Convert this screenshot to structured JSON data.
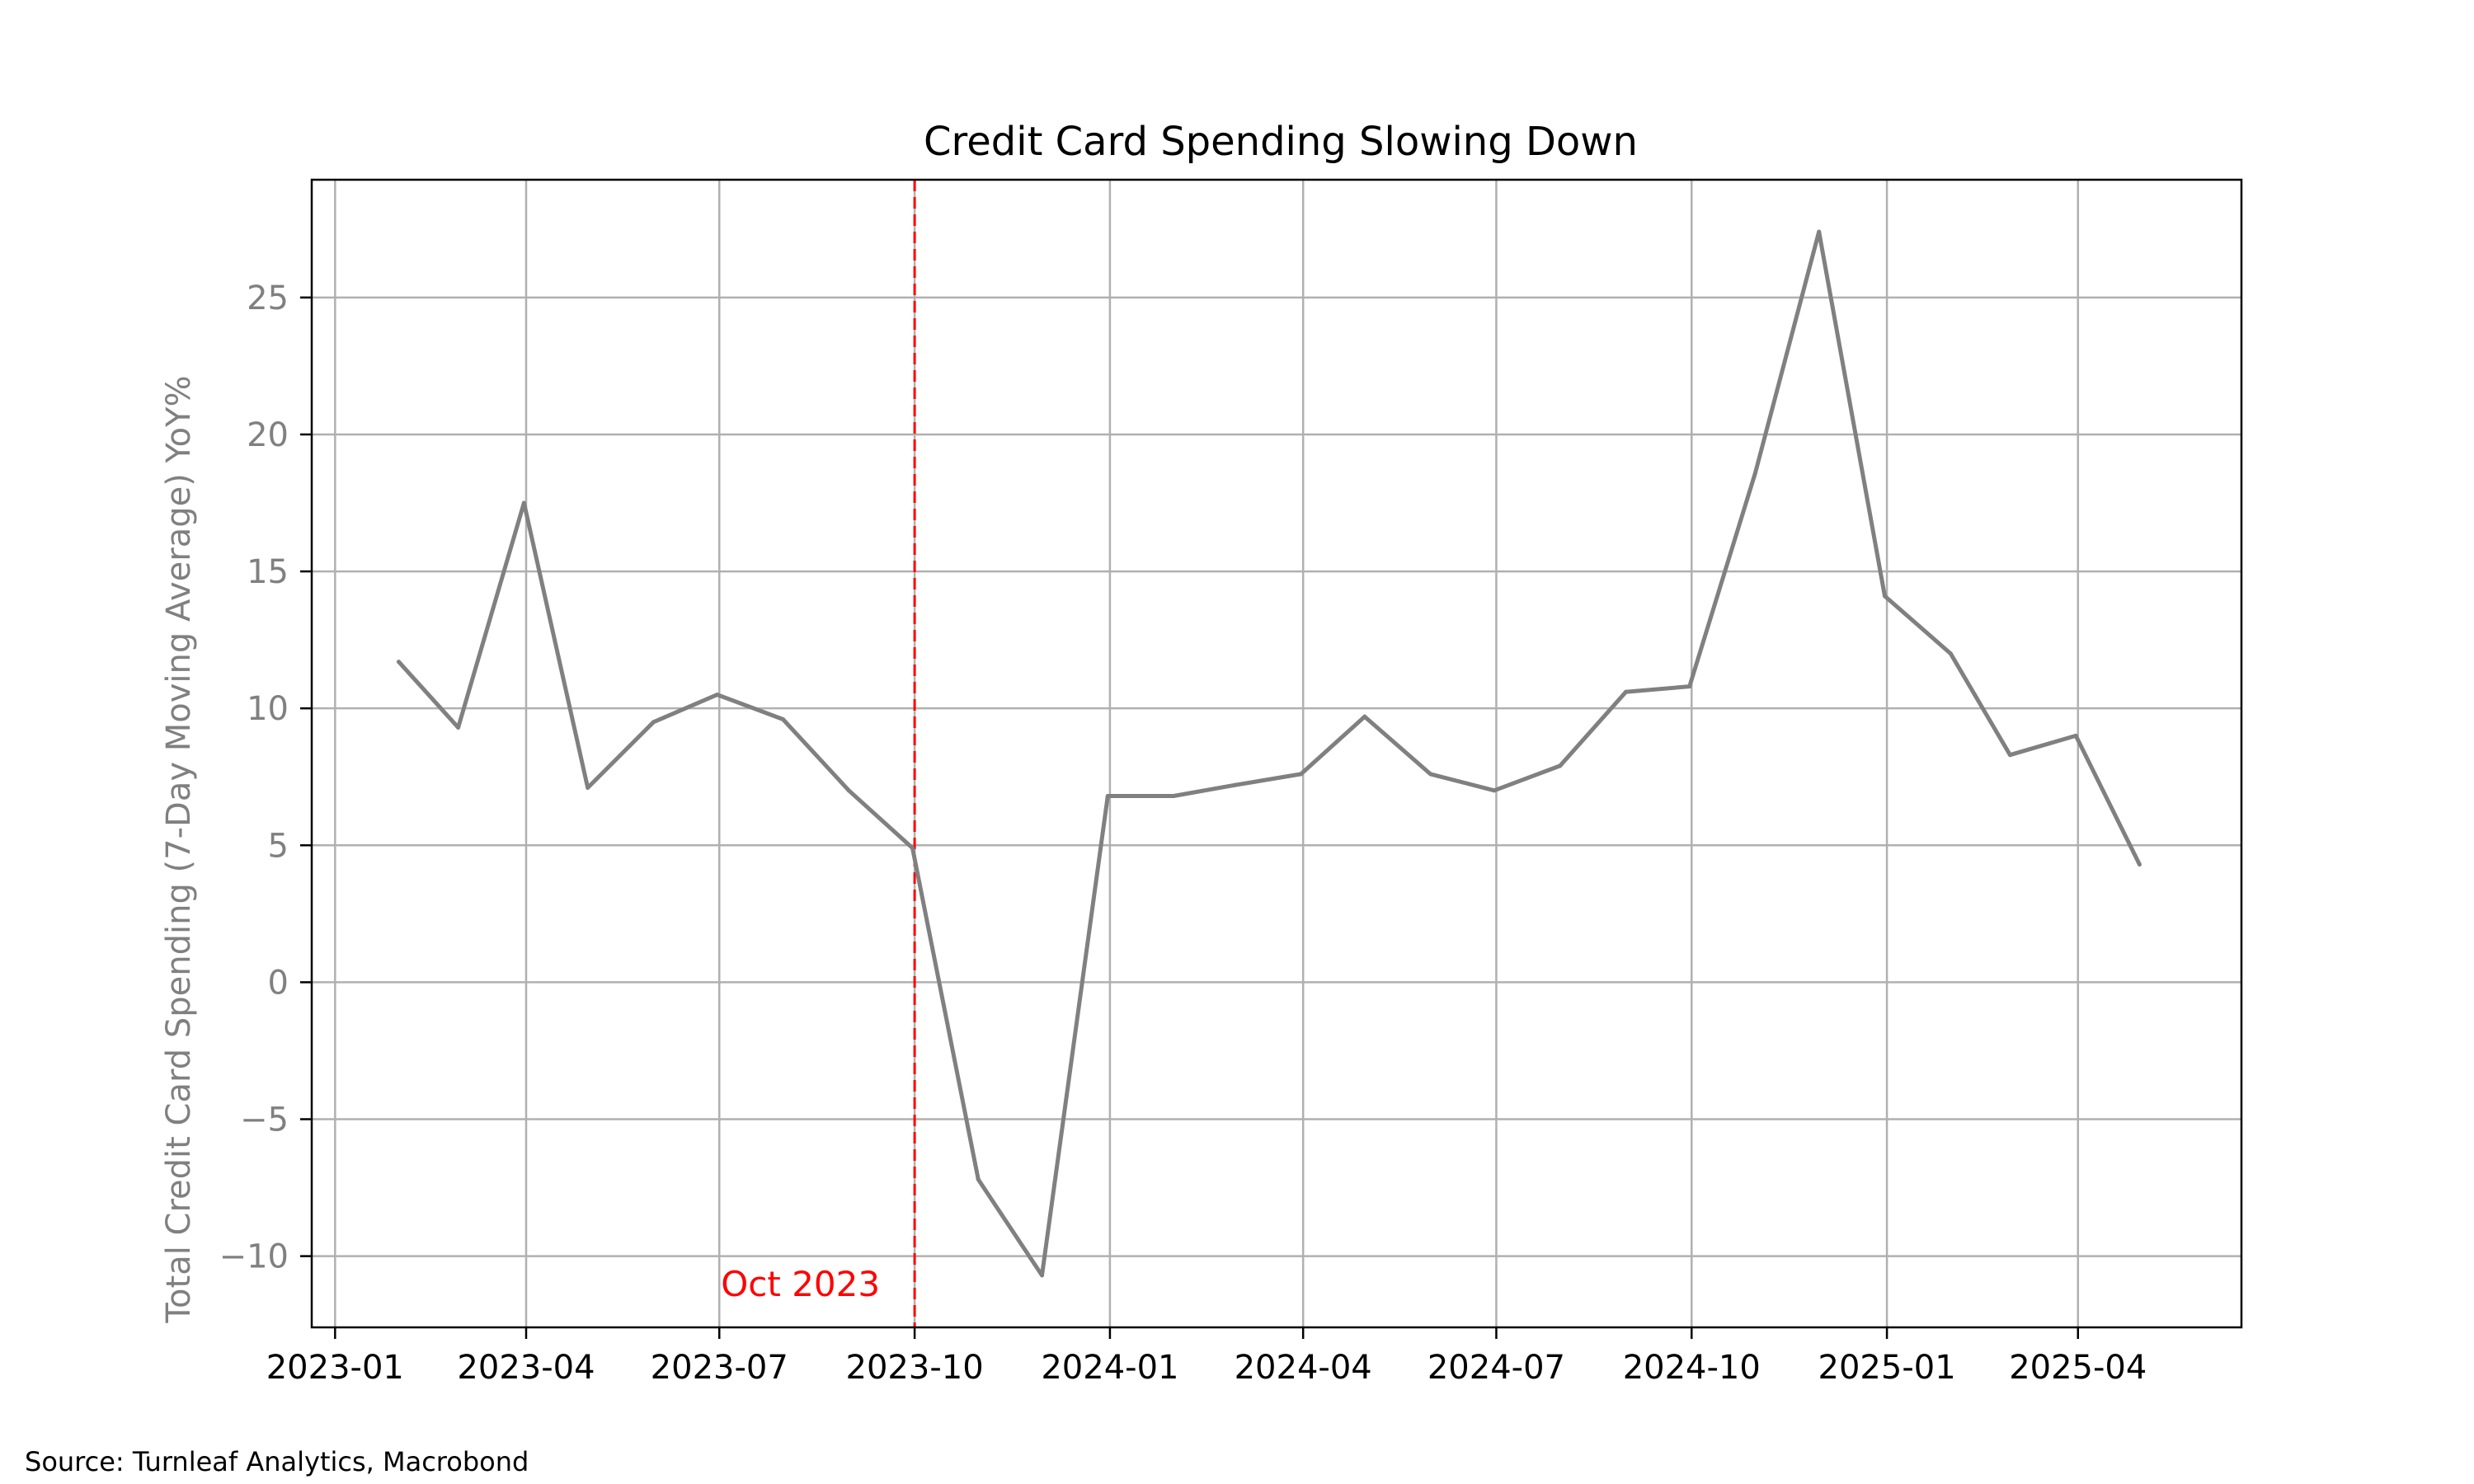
{
  "chart_data": {
    "type": "line",
    "title": "Credit Card Spending Slowing Down",
    "xlabel": "",
    "ylabel": "Total Credit Card Spending (7-Day Moving Average) YoY%",
    "source": "Source: Turnleaf Analytics, Macrobond",
    "x_ticks": [
      "2023-01",
      "2023-04",
      "2023-07",
      "2023-10",
      "2024-01",
      "2024-04",
      "2024-07",
      "2024-10",
      "2025-01",
      "2025-04"
    ],
    "y_ticks": [
      25,
      20,
      15,
      10,
      5,
      0,
      -5,
      -10
    ],
    "y_tick_labels": [
      "25",
      "20",
      "15",
      "10",
      "5",
      "0",
      "−5",
      "−10"
    ],
    "xlim": [
      "2022-12-21",
      "2025-06-17"
    ],
    "ylim": [
      -12.6,
      29.3
    ],
    "grid": true,
    "series": [
      {
        "color": "#808080",
        "x": [
          "2023-01-31",
          "2023-02-28",
          "2023-03-31",
          "2023-04-30",
          "2023-05-31",
          "2023-06-30",
          "2023-07-31",
          "2023-08-31",
          "2023-09-30",
          "2023-10-31",
          "2023-11-30",
          "2023-12-31",
          "2024-01-31",
          "2024-02-29",
          "2024-03-31",
          "2024-04-30",
          "2024-05-31",
          "2024-06-30",
          "2024-07-31",
          "2024-08-31",
          "2024-09-30",
          "2024-10-31",
          "2024-11-30",
          "2024-12-31",
          "2025-01-31",
          "2025-02-28",
          "2025-03-31",
          "2025-04-30"
        ],
        "values": [
          11.7,
          9.3,
          17.5,
          7.1,
          9.5,
          10.5,
          9.6,
          7.0,
          4.9,
          -7.2,
          -10.7,
          6.8,
          6.8,
          7.2,
          7.6,
          9.7,
          7.6,
          7.0,
          7.9,
          10.6,
          10.8,
          18.6,
          27.4,
          14.1,
          12.0,
          8.3,
          9.0,
          4.3
        ]
      }
    ],
    "vline": {
      "x": "2023-10-01",
      "label": "Oct 2023",
      "color": "#ff0000",
      "style": "dashed"
    },
    "colors": {
      "tick_label_y": "#808080",
      "ylabel": "#808080",
      "grid": "#b0b0b0"
    }
  }
}
